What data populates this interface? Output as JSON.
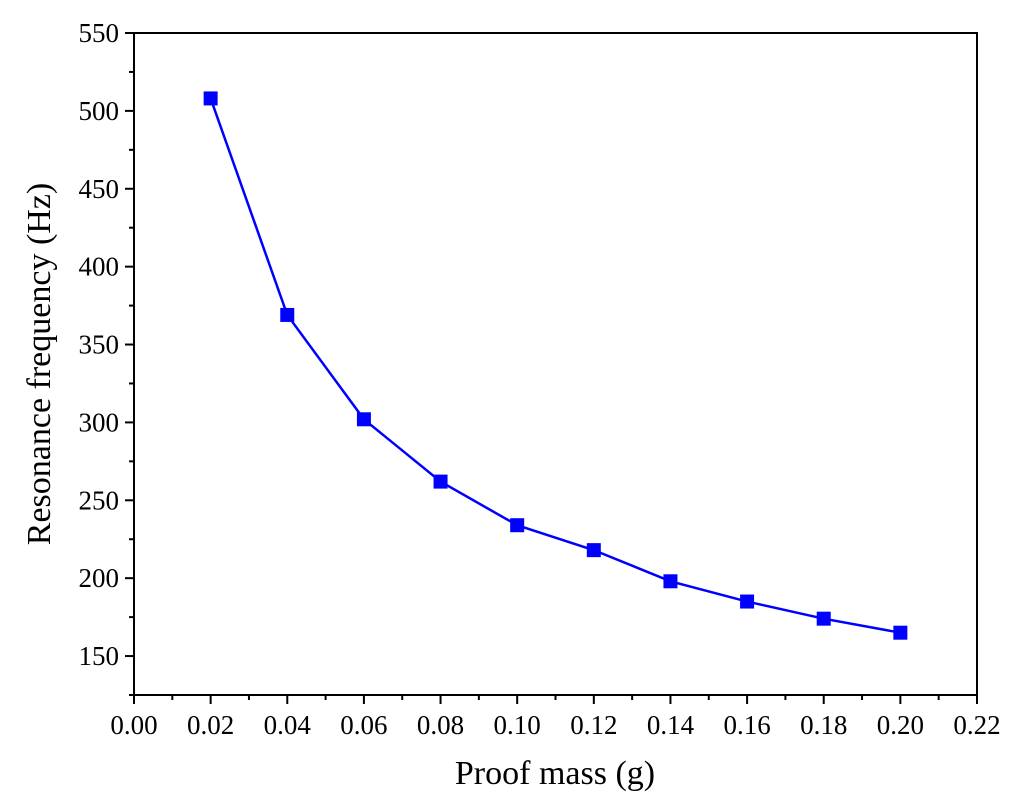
{
  "chart_data": {
    "type": "line",
    "title": "",
    "xlabel": "Proof mass (g)",
    "ylabel": "Resonance frequency (Hz)",
    "xlim": [
      0.0,
      0.22
    ],
    "ylim": [
      125,
      550
    ],
    "xticks": [
      "0.00",
      "0.02",
      "0.04",
      "0.06",
      "0.08",
      "0.10",
      "0.12",
      "0.14",
      "0.16",
      "0.18",
      "0.20",
      "0.22"
    ],
    "yticks": [
      "150",
      "200",
      "250",
      "300",
      "350",
      "400",
      "450",
      "500",
      "550"
    ],
    "grid": false,
    "legend": "none",
    "marker": "square",
    "color": "#0000ff",
    "series": [
      {
        "x": [
          0.02,
          0.04,
          0.06,
          0.08,
          0.1,
          0.12,
          0.14,
          0.16,
          0.18,
          0.2
        ],
        "y": [
          508,
          369,
          302,
          262,
          234,
          218,
          198,
          185,
          174,
          165
        ]
      }
    ]
  }
}
